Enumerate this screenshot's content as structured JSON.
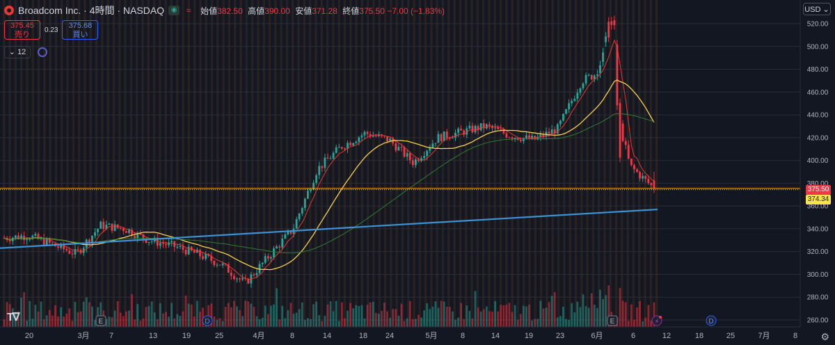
{
  "header": {
    "symbol": "Broadcom Inc. · 4時間 · NASDAQ",
    "flag_icon": "market-closed-icon",
    "open_label": "始値",
    "open_value": "382.50",
    "high_label": "高値",
    "high_value": "390.00",
    "low_label": "安値",
    "low_value": "371.28",
    "close_label": "終値",
    "close_value": "375.50",
    "change": "−7.00 (−1.83%)"
  },
  "trade": {
    "sell_price": "375.45",
    "sell_label": "売り",
    "buy_price": "375.68",
    "buy_label": "買い",
    "spread": "0.23"
  },
  "indicators": {
    "count": "12"
  },
  "currency": "USD",
  "price_labels": {
    "last": "375.50",
    "second": "374.34"
  },
  "colors": {
    "up": "#26a69a",
    "down": "#f23645",
    "ma_fast": "#e53935",
    "ma_mid": "#f7d44a",
    "ma_slow": "#2e7d32",
    "ma_long": "#3a94d6",
    "background": "#131722",
    "price_line": "#f5a623"
  },
  "chart_data": {
    "type": "candlestick",
    "y_axis_ticks": [
      "520.00",
      "500.00",
      "480.00",
      "460.00",
      "440.00",
      "420.00",
      "400.00",
      "380.00",
      "360.00",
      "340.00",
      "320.00",
      "300.00",
      "280.00",
      "260.00"
    ],
    "ylim": [
      255,
      530
    ],
    "x_axis_ticks": [
      "20",
      "3月",
      "7",
      "13",
      "19",
      "25",
      "4月",
      "8",
      "14",
      "18",
      "24",
      "5月",
      "8",
      "14",
      "19",
      "23",
      "6月",
      "6",
      "12",
      "18",
      "25",
      "7月",
      "8"
    ],
    "events": [
      {
        "type": "earnings",
        "label": "E",
        "at": "7"
      },
      {
        "type": "dividend",
        "label": "D",
        "at": "19"
      },
      {
        "type": "earnings",
        "label": "E",
        "at": "6月"
      },
      {
        "type": "split",
        "label": "⚡",
        "at": "12"
      },
      {
        "type": "dividend",
        "label": "D",
        "at": "18"
      }
    ],
    "price_closes_weekly": [
      332,
      334,
      326,
      318,
      343,
      340,
      330,
      325,
      318,
      309,
      292,
      316,
      340,
      392,
      412,
      424,
      418,
      398,
      420,
      425,
      430,
      422,
      418,
      428,
      470,
      480,
      395,
      375.5
    ],
    "moving_averages": [
      {
        "name": "MA fast",
        "color": "#e53935"
      },
      {
        "name": "MA mid",
        "color": "#f7d44a"
      },
      {
        "name": "MA slow",
        "color": "#2e7d32"
      },
      {
        "name": "MA long",
        "color": "#3a94d6"
      }
    ],
    "grid": true
  }
}
